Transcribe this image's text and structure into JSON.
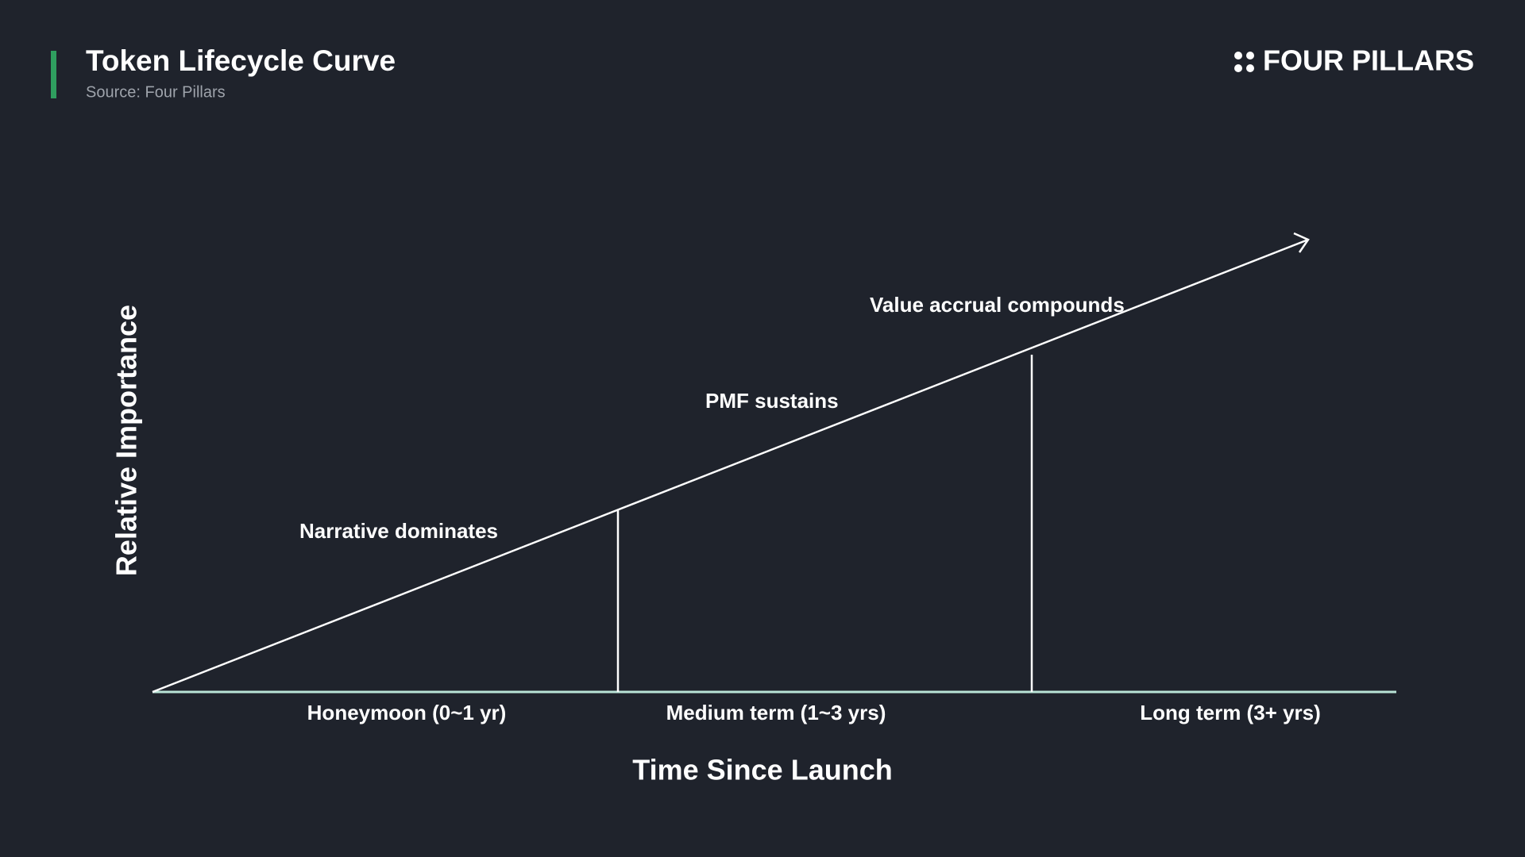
{
  "header": {
    "title": "Token Lifecycle Curve",
    "source": "Source: Four Pillars",
    "logo": "FOUR PILLARS"
  },
  "diagram": {
    "y_axis_label": "Relative Importance",
    "x_axis_label": "Time Since Launch",
    "phases": [
      {
        "label": "Honeymoon (0~1 yr)",
        "annotation": "Narrative dominates"
      },
      {
        "label": "Medium term (1~3 yrs)",
        "annotation": "PMF sustains"
      },
      {
        "label": "Long term (3+ yrs)",
        "annotation": "Value accrual compounds"
      }
    ]
  }
}
